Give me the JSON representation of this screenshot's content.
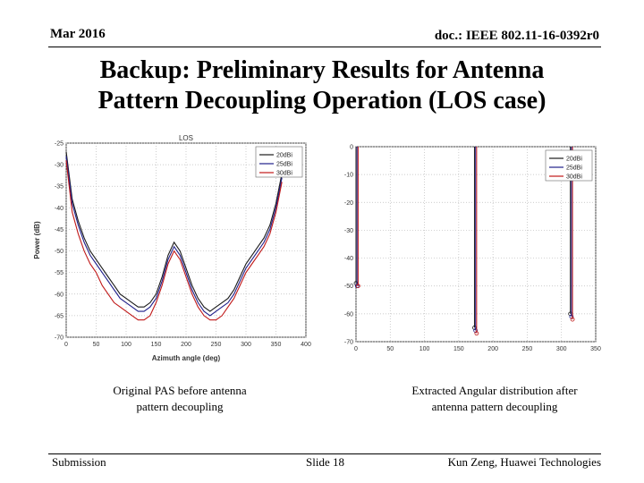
{
  "header": {
    "date": "Mar 2016",
    "doc_id": "doc.: IEEE 802.11-16-0392r0"
  },
  "title_line1": "Backup: Preliminary Results for Antenna",
  "title_line2": "Pattern Decoupling Operation (LOS case)",
  "captions": {
    "left_line1": "Original PAS before antenna",
    "left_line2": "pattern decoupling",
    "right_line1": "Extracted Angular distribution after",
    "right_line2": "antenna pattern decoupling"
  },
  "footer": {
    "left": "Submission",
    "center": "Slide 18",
    "right": "Kun Zeng, Huawei Technologies"
  },
  "colors": {
    "series1": "#1a1a1a",
    "series2": "#1f1f8a",
    "series3": "#c01818"
  },
  "chart_data": [
    {
      "type": "line",
      "title": "LOS",
      "xlabel": "Azimuth angle (deg)",
      "ylabel": "Power (dB)",
      "xlim": [
        0,
        400
      ],
      "ylim": [
        -70,
        -25
      ],
      "xticks": [
        "0",
        "50",
        "100",
        "150",
        "200",
        "250",
        "300",
        "350",
        "400"
      ],
      "yticks": [
        "-25",
        "-30",
        "-35",
        "-40",
        "-45",
        "-50",
        "-55",
        "-60",
        "-65",
        "-70"
      ],
      "grid": true,
      "legend": "top-right",
      "x": [
        0,
        10,
        20,
        30,
        40,
        50,
        60,
        70,
        80,
        90,
        100,
        110,
        120,
        130,
        140,
        150,
        160,
        170,
        180,
        190,
        200,
        210,
        220,
        230,
        240,
        250,
        260,
        270,
        280,
        290,
        300,
        310,
        320,
        330,
        340,
        350,
        360
      ],
      "series": [
        {
          "name": "20dBi",
          "values": [
            -27,
            -38,
            -43,
            -47,
            -50,
            -52,
            -54,
            -56,
            -58,
            -60,
            -61,
            -62,
            -63,
            -63,
            -62,
            -60,
            -56,
            -51,
            -48,
            -50,
            -54,
            -58,
            -61,
            -63,
            -64,
            -63,
            -62,
            -61,
            -59,
            -56,
            -53,
            -51,
            -49,
            -47,
            -44,
            -39,
            -32
          ]
        },
        {
          "name": "25dBi",
          "values": [
            -28,
            -39,
            -44,
            -48,
            -51,
            -53,
            -55,
            -57,
            -59,
            -61,
            -62,
            -63,
            -64,
            -64,
            -63,
            -61,
            -57,
            -52,
            -49,
            -51,
            -55,
            -59,
            -62,
            -64,
            -65,
            -64,
            -63,
            -62,
            -60,
            -57,
            -54,
            -52,
            -50,
            -48,
            -45,
            -40,
            -33
          ]
        },
        {
          "name": "30dBi",
          "values": [
            -29,
            -41,
            -46,
            -50,
            -53,
            -55,
            -58,
            -60,
            -62,
            -63,
            -64,
            -65,
            -66,
            -66,
            -65,
            -62,
            -58,
            -53,
            -50,
            -52,
            -56,
            -60,
            -63,
            -65,
            -66,
            -66,
            -65,
            -63,
            -61,
            -58,
            -55,
            -53,
            -51,
            -49,
            -46,
            -41,
            -34
          ]
        }
      ]
    },
    {
      "type": "line",
      "title": "",
      "xlabel": "",
      "ylabel": "",
      "xlim": [
        0,
        350
      ],
      "ylim": [
        -70,
        0
      ],
      "xticks": [
        "0",
        "50",
        "100",
        "150",
        "200",
        "250",
        "300",
        "350"
      ],
      "yticks": [
        "0",
        "-10",
        "-20",
        "-30",
        "-40",
        "-50",
        "-60",
        "-70"
      ],
      "grid": true,
      "legend": "top-right",
      "x": [
        0,
        173,
        313
      ],
      "series": [
        {
          "name": "20dBi",
          "values": [
            -49,
            -65,
            -60
          ]
        },
        {
          "name": "25dBi",
          "values": [
            -50,
            -66,
            -61
          ]
        },
        {
          "name": "30dBi",
          "values": [
            -50,
            -67,
            -62
          ]
        }
      ]
    }
  ]
}
